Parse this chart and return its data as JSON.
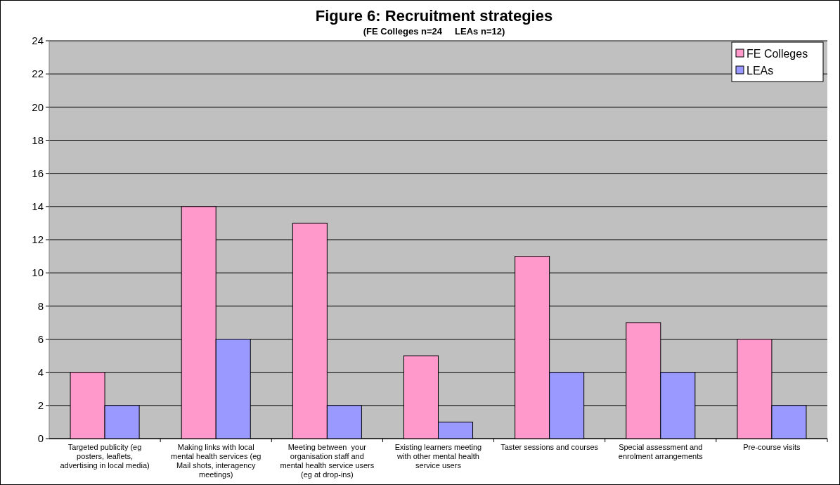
{
  "chart_data": {
    "type": "bar",
    "title": "Figure 6: Recruitment strategies",
    "subtitle": "(FE Colleges n=24     LEAs n=12)",
    "categories": [
      "Targeted publicity (eg posters, leaflets, advertising in local media)",
      "Making links with local mental health services (eg Mail shots, interagency meetings)",
      "Meeting between  your organisation staff and mental health service users (eg at drop-ins)",
      "Existing learners meeting with other mental health service users",
      "Taster sessions and courses",
      "Special assessment and enrolment arrangements",
      "Pre-course visits"
    ],
    "series": [
      {
        "name": "FE Colleges",
        "color": "#ff99cc",
        "values": [
          4,
          14,
          13,
          5,
          11,
          7,
          6
        ]
      },
      {
        "name": "LEAs",
        "color": "#9999ff",
        "values": [
          2,
          6,
          2,
          1,
          4,
          4,
          2
        ]
      }
    ],
    "ylim": [
      0,
      24
    ],
    "yticks": [
      0,
      2,
      4,
      6,
      8,
      10,
      12,
      14,
      16,
      18,
      20,
      22,
      24
    ],
    "grid": "y",
    "legend": "top right"
  }
}
